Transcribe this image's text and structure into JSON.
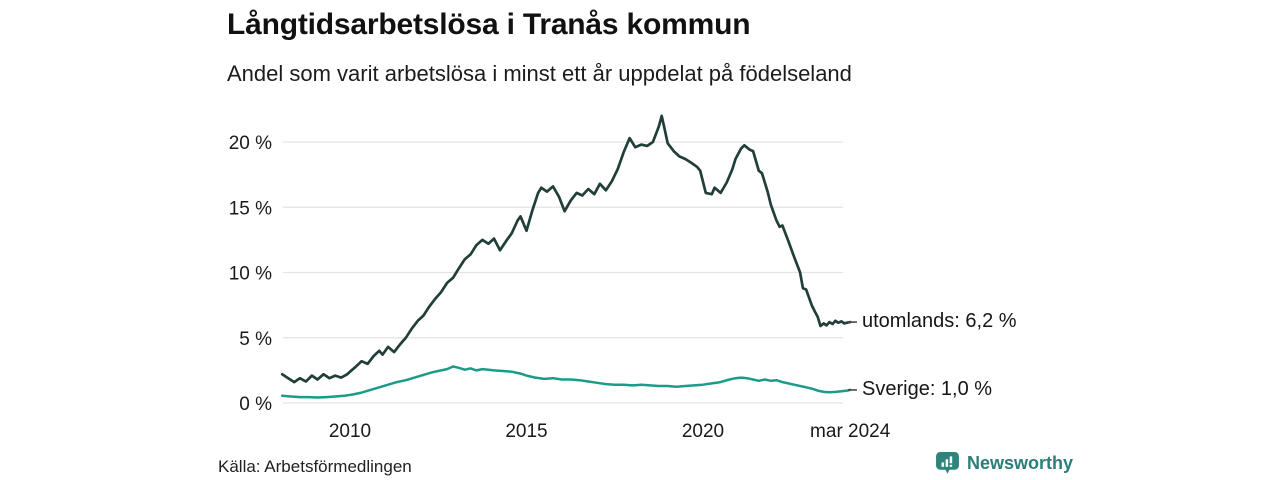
{
  "header": {
    "title": "Långtidsarbetslösa i Tranås kommun",
    "subtitle": "Andel som varit arbetslösa i minst ett år uppdelat på födelseland"
  },
  "chart_data": {
    "type": "line",
    "title": "Långtidsarbetslösa i Tranås kommun",
    "subtitle": "Andel som varit arbetslösa i minst ett år uppdelat på födelseland",
    "xlabel": "",
    "ylabel": "",
    "unit": "%",
    "grid": true,
    "xlim": [
      2008.05,
      2024.3
    ],
    "ylim": [
      0,
      22
    ],
    "yticks": [
      {
        "v": 20,
        "label": "20 %"
      },
      {
        "v": 15,
        "label": "15 %"
      },
      {
        "v": 10,
        "label": "10 %"
      },
      {
        "v": 5,
        "label": "5 %"
      },
      {
        "v": 0,
        "label": "0 %"
      }
    ],
    "xticks": [
      {
        "v": 2010,
        "label": "2010"
      },
      {
        "v": 2015,
        "label": "2015"
      },
      {
        "v": 2020,
        "label": "2020"
      },
      {
        "v": 2024.17,
        "label": "mar 2024"
      }
    ],
    "series": [
      {
        "name": "utomlands",
        "color": "#213e39",
        "end_label": "utomlands: 6,2 %",
        "end_value": 6.2,
        "points": [
          [
            2008.08,
            2.2
          ],
          [
            2008.25,
            1.9
          ],
          [
            2008.42,
            1.6
          ],
          [
            2008.58,
            1.9
          ],
          [
            2008.75,
            1.65
          ],
          [
            2008.92,
            2.1
          ],
          [
            2009.08,
            1.8
          ],
          [
            2009.25,
            2.2
          ],
          [
            2009.42,
            1.9
          ],
          [
            2009.58,
            2.1
          ],
          [
            2009.75,
            1.95
          ],
          [
            2009.92,
            2.2
          ],
          [
            2010.0,
            2.4
          ],
          [
            2010.17,
            2.8
          ],
          [
            2010.33,
            3.2
          ],
          [
            2010.5,
            3.0
          ],
          [
            2010.67,
            3.6
          ],
          [
            2010.83,
            4.0
          ],
          [
            2010.92,
            3.7
          ],
          [
            2011.08,
            4.3
          ],
          [
            2011.25,
            3.9
          ],
          [
            2011.42,
            4.5
          ],
          [
            2011.58,
            5.0
          ],
          [
            2011.75,
            5.7
          ],
          [
            2011.92,
            6.3
          ],
          [
            2012.08,
            6.7
          ],
          [
            2012.25,
            7.4
          ],
          [
            2012.42,
            8.0
          ],
          [
            2012.58,
            8.5
          ],
          [
            2012.75,
            9.2
          ],
          [
            2012.92,
            9.6
          ],
          [
            2013.08,
            10.3
          ],
          [
            2013.25,
            11.0
          ],
          [
            2013.42,
            11.4
          ],
          [
            2013.58,
            12.1
          ],
          [
            2013.75,
            12.5
          ],
          [
            2013.92,
            12.2
          ],
          [
            2014.08,
            12.6
          ],
          [
            2014.25,
            11.7
          ],
          [
            2014.42,
            12.4
          ],
          [
            2014.58,
            13.0
          ],
          [
            2014.75,
            14.0
          ],
          [
            2014.83,
            14.3
          ],
          [
            2015.0,
            13.2
          ],
          [
            2015.17,
            14.8
          ],
          [
            2015.33,
            16.1
          ],
          [
            2015.42,
            16.5
          ],
          [
            2015.58,
            16.2
          ],
          [
            2015.75,
            16.6
          ],
          [
            2015.92,
            15.8
          ],
          [
            2016.08,
            14.7
          ],
          [
            2016.25,
            15.5
          ],
          [
            2016.42,
            16.1
          ],
          [
            2016.58,
            15.9
          ],
          [
            2016.75,
            16.4
          ],
          [
            2016.92,
            16.0
          ],
          [
            2017.08,
            16.8
          ],
          [
            2017.25,
            16.3
          ],
          [
            2017.42,
            17.0
          ],
          [
            2017.58,
            17.9
          ],
          [
            2017.75,
            19.2
          ],
          [
            2017.92,
            20.3
          ],
          [
            2018.08,
            19.6
          ],
          [
            2018.25,
            19.8
          ],
          [
            2018.42,
            19.7
          ],
          [
            2018.58,
            20.0
          ],
          [
            2018.75,
            21.2
          ],
          [
            2018.83,
            22.0
          ],
          [
            2018.92,
            20.9
          ],
          [
            2019.0,
            19.9
          ],
          [
            2019.17,
            19.3
          ],
          [
            2019.33,
            18.9
          ],
          [
            2019.5,
            18.7
          ],
          [
            2019.67,
            18.4
          ],
          [
            2019.83,
            18.1
          ],
          [
            2019.92,
            17.8
          ],
          [
            2020.08,
            16.1
          ],
          [
            2020.25,
            16.0
          ],
          [
            2020.33,
            16.5
          ],
          [
            2020.5,
            16.1
          ],
          [
            2020.67,
            16.9
          ],
          [
            2020.83,
            17.9
          ],
          [
            2020.92,
            18.7
          ],
          [
            2021.08,
            19.5
          ],
          [
            2021.17,
            19.75
          ],
          [
            2021.33,
            19.4
          ],
          [
            2021.42,
            19.3
          ],
          [
            2021.58,
            17.8
          ],
          [
            2021.67,
            17.6
          ],
          [
            2021.83,
            16.2
          ],
          [
            2021.92,
            15.2
          ],
          [
            2022.08,
            14.0
          ],
          [
            2022.17,
            13.5
          ],
          [
            2022.25,
            13.6
          ],
          [
            2022.42,
            12.4
          ],
          [
            2022.58,
            11.2
          ],
          [
            2022.75,
            10.0
          ],
          [
            2022.83,
            8.8
          ],
          [
            2022.92,
            8.7
          ],
          [
            2023.08,
            7.5
          ],
          [
            2023.17,
            7.0
          ],
          [
            2023.25,
            6.6
          ],
          [
            2023.33,
            5.9
          ],
          [
            2023.42,
            6.1
          ],
          [
            2023.5,
            5.95
          ],
          [
            2023.58,
            6.2
          ],
          [
            2023.67,
            6.05
          ],
          [
            2023.75,
            6.3
          ],
          [
            2023.83,
            6.15
          ],
          [
            2023.92,
            6.25
          ],
          [
            2024.0,
            6.1
          ],
          [
            2024.08,
            6.15
          ],
          [
            2024.17,
            6.2
          ]
        ]
      },
      {
        "name": "Sverige",
        "color": "#1a9c88",
        "end_label": "Sverige: 1,0 %",
        "end_value": 1.0,
        "points": [
          [
            2008.08,
            0.55
          ],
          [
            2008.33,
            0.5
          ],
          [
            2008.58,
            0.45
          ],
          [
            2008.83,
            0.45
          ],
          [
            2009.08,
            0.42
          ],
          [
            2009.33,
            0.45
          ],
          [
            2009.58,
            0.5
          ],
          [
            2009.83,
            0.55
          ],
          [
            2010.08,
            0.65
          ],
          [
            2010.33,
            0.8
          ],
          [
            2010.58,
            1.0
          ],
          [
            2010.83,
            1.2
          ],
          [
            2011.08,
            1.4
          ],
          [
            2011.33,
            1.6
          ],
          [
            2011.58,
            1.75
          ],
          [
            2011.83,
            1.95
          ],
          [
            2012.08,
            2.15
          ],
          [
            2012.33,
            2.35
          ],
          [
            2012.58,
            2.5
          ],
          [
            2012.75,
            2.6
          ],
          [
            2012.92,
            2.8
          ],
          [
            2013.08,
            2.7
          ],
          [
            2013.25,
            2.55
          ],
          [
            2013.42,
            2.65
          ],
          [
            2013.58,
            2.5
          ],
          [
            2013.75,
            2.6
          ],
          [
            2013.92,
            2.55
          ],
          [
            2014.08,
            2.5
          ],
          [
            2014.33,
            2.45
          ],
          [
            2014.58,
            2.4
          ],
          [
            2014.83,
            2.25
          ],
          [
            2015.0,
            2.1
          ],
          [
            2015.25,
            1.95
          ],
          [
            2015.5,
            1.85
          ],
          [
            2015.75,
            1.9
          ],
          [
            2016.0,
            1.8
          ],
          [
            2016.25,
            1.8
          ],
          [
            2016.5,
            1.75
          ],
          [
            2016.75,
            1.65
          ],
          [
            2017.0,
            1.55
          ],
          [
            2017.25,
            1.45
          ],
          [
            2017.5,
            1.4
          ],
          [
            2017.75,
            1.4
          ],
          [
            2018.0,
            1.35
          ],
          [
            2018.25,
            1.4
          ],
          [
            2018.5,
            1.35
          ],
          [
            2018.75,
            1.3
          ],
          [
            2019.0,
            1.3
          ],
          [
            2019.25,
            1.25
          ],
          [
            2019.5,
            1.3
          ],
          [
            2019.75,
            1.35
          ],
          [
            2020.0,
            1.4
          ],
          [
            2020.25,
            1.5
          ],
          [
            2020.5,
            1.6
          ],
          [
            2020.75,
            1.8
          ],
          [
            2020.92,
            1.9
          ],
          [
            2021.08,
            1.95
          ],
          [
            2021.25,
            1.9
          ],
          [
            2021.42,
            1.8
          ],
          [
            2021.58,
            1.7
          ],
          [
            2021.75,
            1.8
          ],
          [
            2021.92,
            1.7
          ],
          [
            2022.08,
            1.75
          ],
          [
            2022.25,
            1.6
          ],
          [
            2022.42,
            1.5
          ],
          [
            2022.58,
            1.4
          ],
          [
            2022.75,
            1.3
          ],
          [
            2022.92,
            1.2
          ],
          [
            2023.08,
            1.1
          ],
          [
            2023.25,
            0.95
          ],
          [
            2023.42,
            0.85
          ],
          [
            2023.58,
            0.82
          ],
          [
            2023.75,
            0.85
          ],
          [
            2023.92,
            0.9
          ],
          [
            2024.08,
            0.95
          ],
          [
            2024.17,
            1.0
          ]
        ]
      }
    ],
    "legend_position": "end-of-line labels, right side"
  },
  "footer": {
    "source": "Källa: Arbetsförmedlingen",
    "brand": "Newsworthy"
  },
  "colors": {
    "series_foreign": "#213e39",
    "series_sweden": "#1a9c88",
    "brand_teal": "#2b7e77",
    "grid": "#e3e3e3",
    "text": "#1a1a1a",
    "background": "#ffffff"
  }
}
